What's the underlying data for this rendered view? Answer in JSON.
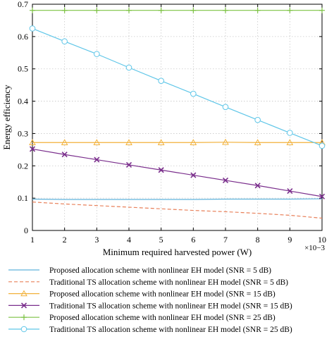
{
  "chart_data": {
    "type": "line",
    "title": "",
    "xlabel": "Minimum required harvested power (W)",
    "ylabel": "Energy efficiency",
    "x_multiplier_label": "×10−3",
    "xlim": [
      1,
      10
    ],
    "ylim": [
      0,
      0.7
    ],
    "x_ticks": [
      "1",
      "2",
      "3",
      "4",
      "5",
      "6",
      "7",
      "8",
      "9",
      "10"
    ],
    "y_ticks": [
      "0",
      "0.1",
      "0.2",
      "0.3",
      "0.4",
      "0.5",
      "0.6",
      "0.7"
    ],
    "grid": true,
    "legend_placement": "below",
    "x": [
      1,
      2,
      3,
      4,
      5,
      6,
      7,
      8,
      9,
      10
    ],
    "series": [
      {
        "name": "Proposed allocation scheme with nonlinear EH model (SNR = 5 dB)",
        "color": "#5fb3dc",
        "dash": "solid",
        "marker": "none",
        "values": [
          0.097,
          0.096,
          0.096,
          0.096,
          0.096,
          0.096,
          0.097,
          0.097,
          0.097,
          0.098
        ]
      },
      {
        "name": "Traditional TS allocation scheme with nonlinear EH model (SNR = 5 dB)",
        "color": "#e8805a",
        "dash": "dashed",
        "marker": "none",
        "values": [
          0.088,
          0.082,
          0.077,
          0.072,
          0.067,
          0.062,
          0.058,
          0.053,
          0.047,
          0.038
        ]
      },
      {
        "name": "Proposed allocation scheme with nonlinear EH model (SNR = 15 dB)",
        "color": "#f2b13a",
        "dash": "solid",
        "marker": "triangle",
        "values": [
          0.272,
          0.272,
          0.272,
          0.272,
          0.272,
          0.272,
          0.273,
          0.272,
          0.272,
          0.272
        ]
      },
      {
        "name": "Traditional TS allocation scheme with nonlinear EH model (SNR = 15 dB)",
        "color": "#7a2e8c",
        "dash": "solid",
        "marker": "x",
        "values": [
          0.252,
          0.235,
          0.219,
          0.203,
          0.187,
          0.171,
          0.155,
          0.139,
          0.122,
          0.105
        ]
      },
      {
        "name": "Proposed allocation scheme with nonlinear EH model (SNR = 25 dB)",
        "color": "#7cc243",
        "dash": "solid",
        "marker": "plus",
        "values": [
          0.681,
          0.681,
          0.681,
          0.681,
          0.681,
          0.681,
          0.681,
          0.681,
          0.681,
          0.681
        ]
      },
      {
        "name": "Traditional TS allocation scheme with nonlinear EH model (SNR = 25 dB)",
        "color": "#5fc6e8",
        "dash": "solid",
        "marker": "circle",
        "values": [
          0.625,
          0.585,
          0.546,
          0.504,
          0.463,
          0.423,
          0.382,
          0.342,
          0.302,
          0.262
        ]
      }
    ]
  }
}
